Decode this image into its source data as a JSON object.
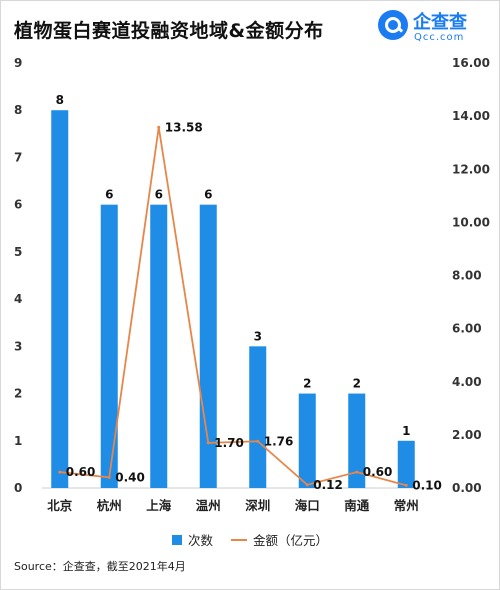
{
  "title": "植物蛋白赛道投融资地域&金额分布",
  "logo": {
    "cn": "企查查",
    "en": "Qcc.com"
  },
  "source": "Source：企查查，截至2021年4月",
  "colors": {
    "bar": "#1f8ce6",
    "line": "#e8864a"
  },
  "chart_data": {
    "type": "bar",
    "categories": [
      "北京",
      "杭州",
      "上海",
      "温州",
      "深圳",
      "海口",
      "南通",
      "常州"
    ],
    "series": [
      {
        "name": "次数",
        "type": "bar",
        "axis": "left",
        "values": [
          8,
          6,
          6,
          6,
          3,
          2,
          2,
          1
        ]
      },
      {
        "name": "金额（亿元）",
        "type": "line",
        "axis": "right",
        "values": [
          0.6,
          0.4,
          13.58,
          1.7,
          1.76,
          0.12,
          0.6,
          0.1
        ]
      }
    ],
    "bar_labels": [
      "8",
      "6",
      "6",
      "6",
      "3",
      "2",
      "2",
      "1"
    ],
    "line_labels": [
      "0.60",
      "0.40",
      "13.58",
      "1.70",
      "1.76",
      "0.12",
      "0.60",
      "0.10"
    ],
    "y_left": {
      "ylim": [
        0,
        9
      ],
      "ticks": [
        "0",
        "1",
        "2",
        "3",
        "4",
        "5",
        "6",
        "7",
        "8",
        "9"
      ]
    },
    "y_right": {
      "ylim": [
        0,
        16
      ],
      "ticks": [
        "0.00",
        "2.00",
        "4.00",
        "6.00",
        "8.00",
        "10.00",
        "12.00",
        "14.00",
        "16.00"
      ]
    },
    "grid": false,
    "legend": "bottom-center"
  }
}
